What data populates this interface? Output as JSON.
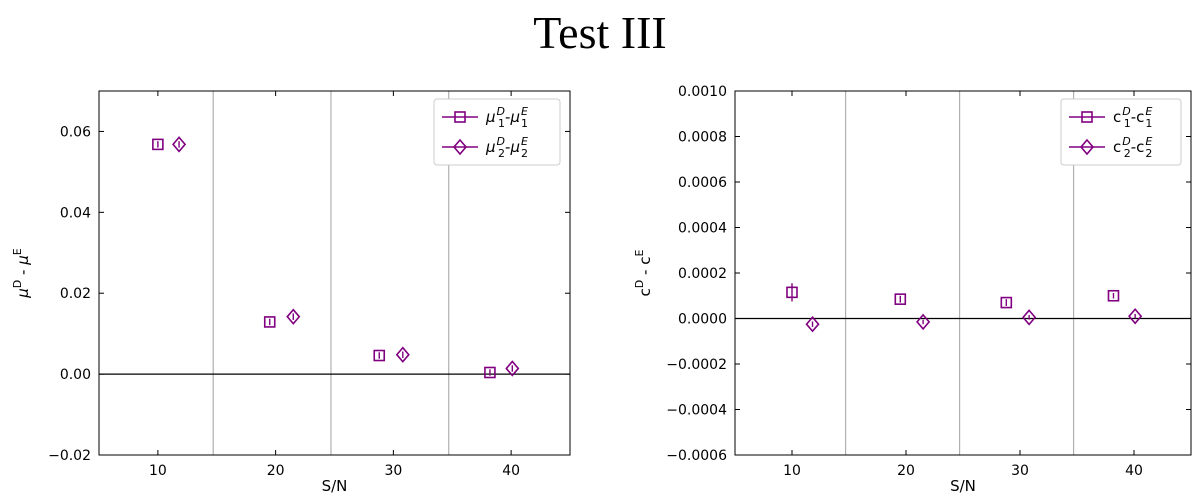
{
  "figure": {
    "title": "Test III"
  },
  "chart_data": [
    {
      "type": "scatter",
      "xlabel": "S/N",
      "ylabel_main": "μ",
      "ylabel_sup_left": "D",
      "ylabel_sup_right": "E",
      "ylabel_sep": " - ",
      "xlim": [
        5,
        45
      ],
      "ylim": [
        -0.02,
        0.07
      ],
      "xticks": [
        10,
        20,
        30,
        40
      ],
      "xtick_labels": [
        "10",
        "20",
        "30",
        "40"
      ],
      "yticks": [
        -0.02,
        0,
        0.02,
        0.04,
        0.06
      ],
      "ytick_labels": [
        "−0.02",
        "0.00",
        "0.02",
        "0.04",
        "0.06"
      ],
      "vlines": [
        14.7,
        24.7,
        34.7
      ],
      "hline": 0,
      "color": "#800080",
      "legend_position": "top-right",
      "series": [
        {
          "label_base": "μ",
          "label_index": "1",
          "marker": "square",
          "x": [
            10,
            19.5,
            28.8,
            38.2
          ],
          "y": [
            0.0568,
            0.0129,
            0.0046,
            0.0004
          ],
          "yerr": [
            0.0008,
            0.0008,
            0.0008,
            0.0008
          ]
        },
        {
          "label_base": "μ",
          "label_index": "2",
          "marker": "diamond",
          "x": [
            11.8,
            21.5,
            30.8,
            40.1
          ],
          "y": [
            0.0568,
            0.0142,
            0.0048,
            0.0014
          ],
          "yerr": [
            0.0008,
            0.0008,
            0.0008,
            0.0008
          ]
        }
      ]
    },
    {
      "type": "scatter",
      "xlabel": "S/N",
      "ylabel_main": "c",
      "ylabel_sup_left": "D",
      "ylabel_sup_right": "E",
      "ylabel_sep": " - ",
      "xlim": [
        5,
        45
      ],
      "ylim": [
        -0.0006,
        0.001
      ],
      "xticks": [
        10,
        20,
        30,
        40
      ],
      "xtick_labels": [
        "10",
        "20",
        "30",
        "40"
      ],
      "yticks": [
        -0.0006,
        -0.0004,
        -0.0002,
        0,
        0.0002,
        0.0004,
        0.0006,
        0.0008,
        0.001
      ],
      "ytick_labels": [
        "−0.0006",
        "−0.0004",
        "−0.0002",
        "0.0000",
        "0.0002",
        "0.0004",
        "0.0006",
        "0.0008",
        "0.0010"
      ],
      "vlines": [
        14.7,
        24.7,
        34.7
      ],
      "hline": 0,
      "color": "#800080",
      "legend_position": "top-right",
      "series": [
        {
          "label_base": "c",
          "label_index": "1",
          "marker": "square",
          "x": [
            10,
            19.5,
            28.8,
            38.2
          ],
          "y": [
            0.000115,
            8.5e-05,
            7e-05,
            0.0001
          ],
          "yerr": [
            4e-05,
            1.5e-05,
            1.5e-05,
            1.2e-05
          ]
        },
        {
          "label_base": "c",
          "label_index": "2",
          "marker": "diamond",
          "x": [
            11.8,
            21.5,
            30.8,
            40.1
          ],
          "y": [
            -2.5e-05,
            -1.5e-05,
            5e-06,
            1e-05
          ],
          "yerr": [
            1.2e-05,
            1e-05,
            1e-05,
            1e-05
          ]
        }
      ]
    }
  ]
}
